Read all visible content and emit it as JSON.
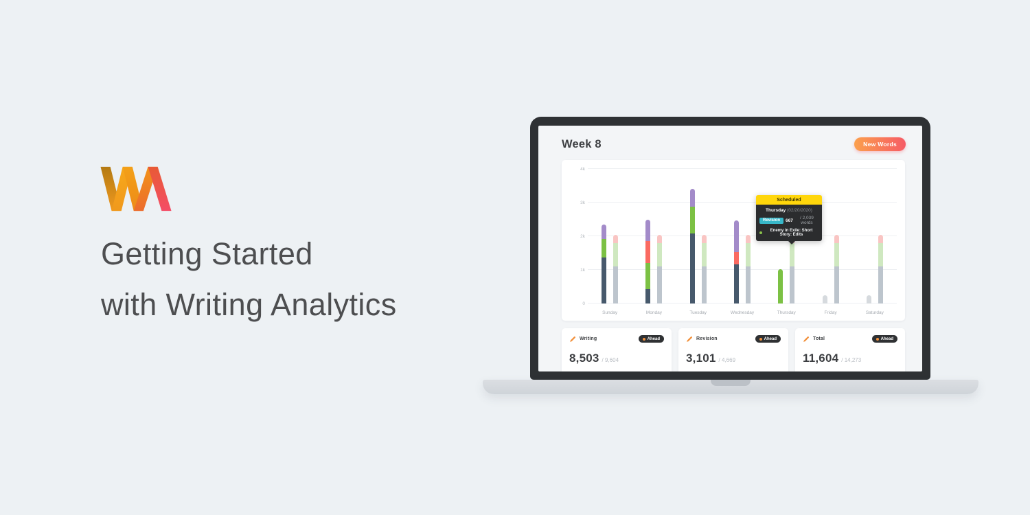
{
  "hero": {
    "logo_name": "writing-analytics-logo",
    "title_line1": "Getting Started",
    "title_line2": "with Writing Analytics"
  },
  "app": {
    "header": {
      "title": "Week 8",
      "new_words_button": "New Words"
    },
    "tooltip": {
      "header": "Scheduled",
      "day": "Thursday",
      "date": "(02/20/2020)",
      "badge": "Revision",
      "amount": "667",
      "of": "/ 2,039 words",
      "note": "Enemy in Exile: Short Story: Edits"
    },
    "cards": [
      {
        "label": "Writing",
        "status": "Ahead",
        "value": "8,503",
        "target": "/ 9,604"
      },
      {
        "label": "Revision",
        "status": "Ahead",
        "value": "3,101",
        "target": "/ 4,669"
      },
      {
        "label": "Total",
        "status": "Ahead",
        "value": "11,604",
        "target": "/ 14,273"
      }
    ]
  },
  "chart_data": {
    "type": "bar",
    "subtype": "paired-stacked-columns",
    "unit": "words",
    "ylim": [
      0,
      4000
    ],
    "grid": true,
    "yticks": [
      {
        "label": "0",
        "value": 0
      },
      {
        "label": "1k",
        "value": 1000
      },
      {
        "label": "2k",
        "value": 2000
      },
      {
        "label": "3k",
        "value": 3000
      },
      {
        "label": "4k",
        "value": 4000
      }
    ],
    "colors": {
      "slate": "#47596c",
      "green": "#7cc144",
      "red": "#fa6a61",
      "purple": "#a38bc9",
      "gray": "#bdc5cd",
      "lightGreen": "#cfe8c0",
      "lightPink": "#f9c5c3",
      "lightGray": "#d6dade"
    },
    "legend_note": "left column = actual words logged (by project), right column = scheduled words",
    "days": [
      {
        "label": "Sunday",
        "actual": [
          {
            "c": "slate",
            "v": 1370
          },
          {
            "c": "green",
            "v": 550
          },
          {
            "c": "purple",
            "v": 420
          }
        ],
        "scheduled": [
          {
            "c": "gray",
            "v": 1100
          },
          {
            "c": "lightGreen",
            "v": 700
          },
          {
            "c": "lightPink",
            "v": 250
          }
        ]
      },
      {
        "label": "Monday",
        "actual": [
          {
            "c": "slate",
            "v": 420
          },
          {
            "c": "green",
            "v": 790
          },
          {
            "c": "red",
            "v": 650
          },
          {
            "c": "purple",
            "v": 630
          }
        ],
        "scheduled": [
          {
            "c": "gray",
            "v": 1100
          },
          {
            "c": "lightGreen",
            "v": 700
          },
          {
            "c": "lightPink",
            "v": 250
          }
        ]
      },
      {
        "label": "Tuesday",
        "actual": [
          {
            "c": "slate",
            "v": 2080
          },
          {
            "c": "green",
            "v": 790
          },
          {
            "c": "purple",
            "v": 540
          }
        ],
        "scheduled": [
          {
            "c": "gray",
            "v": 1100
          },
          {
            "c": "lightGreen",
            "v": 700
          },
          {
            "c": "lightPink",
            "v": 250
          }
        ]
      },
      {
        "label": "Wednesday",
        "actual": [
          {
            "c": "slate",
            "v": 1170
          },
          {
            "c": "red",
            "v": 370
          },
          {
            "c": "purple",
            "v": 920
          }
        ],
        "scheduled": [
          {
            "c": "gray",
            "v": 1100
          },
          {
            "c": "lightGreen",
            "v": 700
          },
          {
            "c": "lightPink",
            "v": 250
          }
        ]
      },
      {
        "label": "Thursday",
        "actual": [
          {
            "c": "green",
            "v": 1030
          }
        ],
        "scheduled": [
          {
            "c": "gray",
            "v": 1100
          },
          {
            "c": "lightGreen",
            "v": 700
          },
          {
            "c": "lightPink",
            "v": 250
          }
        ]
      },
      {
        "label": "Friday",
        "actual": [
          {
            "c": "lightGray",
            "v": 240
          }
        ],
        "scheduled": [
          {
            "c": "gray",
            "v": 1100
          },
          {
            "c": "lightGreen",
            "v": 700
          },
          {
            "c": "lightPink",
            "v": 250
          }
        ]
      },
      {
        "label": "Saturday",
        "actual": [
          {
            "c": "lightGray",
            "v": 240
          }
        ],
        "scheduled": [
          {
            "c": "gray",
            "v": 1100
          },
          {
            "c": "lightGreen",
            "v": 700
          },
          {
            "c": "lightPink",
            "v": 250
          }
        ]
      }
    ]
  }
}
